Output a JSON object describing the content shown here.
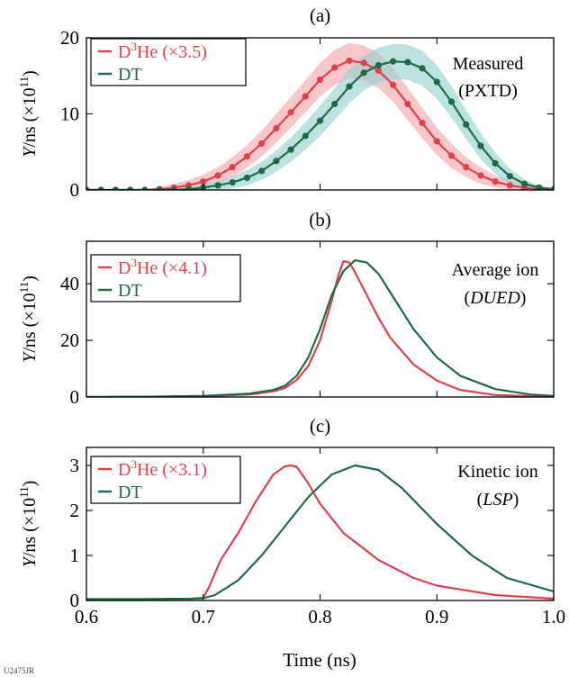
{
  "figure_id": "U2475JR",
  "xlabel": "Time (ns)",
  "x_ticks": [
    "0.6",
    "0.7",
    "0.8",
    "0.9",
    "1.0"
  ],
  "colors": {
    "d3he": "#e0404a",
    "d3he_band": "#f2a9ad",
    "dt": "#1e6a42",
    "dt_band": "#9ad3d3"
  },
  "chart_data": [
    {
      "type": "line",
      "panel": "(a)",
      "title": "",
      "xlabel": "Time (ns)",
      "ylabel_main": "Y",
      "ylabel_rest": "/ns (×10",
      "ylabel_exp": "11",
      "ylabel_close": ")",
      "xlim": [
        0.6,
        1.0
      ],
      "ylim": [
        0,
        20
      ],
      "yticks": [
        0,
        10,
        20
      ],
      "grid": false,
      "legend_position": "top-left",
      "annotation_line1": "Measured",
      "annotation_line2": "(PXTD)",
      "annotation_italic": false,
      "series": [
        {
          "key": "d3he",
          "name": "D",
          "name_sup": "3",
          "name_rest": "He (×3.5)",
          "color": "#e0404a",
          "markers": true,
          "band": true,
          "x": [
            0.6,
            0.6125,
            0.625,
            0.6375,
            0.65,
            0.6625,
            0.675,
            0.6875,
            0.7,
            0.7125,
            0.725,
            0.7375,
            0.75,
            0.7625,
            0.775,
            0.7875,
            0.8,
            0.8125,
            0.825,
            0.8375,
            0.85,
            0.8625,
            0.875,
            0.8875,
            0.9,
            0.9125,
            0.925,
            0.9375,
            0.95,
            0.9625,
            0.975,
            0.9875,
            1.0
          ],
          "y": [
            0,
            0,
            0,
            0,
            0,
            0.1,
            0.3,
            0.6,
            1.1,
            1.9,
            3.0,
            4.4,
            6.1,
            8.1,
            10.2,
            12.3,
            14.5,
            16.1,
            17.0,
            16.7,
            15.7,
            13.8,
            11.3,
            8.8,
            6.4,
            4.5,
            3.0,
            1.9,
            1.1,
            0.6,
            0.3,
            0.1,
            0
          ],
          "band_halfwidth": [
            0,
            0,
            0,
            0,
            0,
            0.3,
            0.5,
            0.7,
            0.9,
            1.1,
            1.3,
            1.5,
            1.7,
            1.9,
            2.0,
            2.1,
            2.2,
            2.3,
            2.3,
            2.3,
            2.3,
            2.2,
            2.1,
            2.0,
            1.8,
            1.6,
            1.3,
            1.1,
            0.8,
            0.6,
            0.4,
            0.2,
            0
          ]
        },
        {
          "key": "dt",
          "name": "DT",
          "name_sup": "",
          "name_rest": "",
          "color": "#1e6a42",
          "markers": true,
          "band": true,
          "x": [
            0.6,
            0.6125,
            0.625,
            0.6375,
            0.65,
            0.6625,
            0.675,
            0.6875,
            0.7,
            0.7125,
            0.725,
            0.7375,
            0.75,
            0.7625,
            0.775,
            0.7875,
            0.8,
            0.8125,
            0.825,
            0.8375,
            0.85,
            0.8625,
            0.875,
            0.8875,
            0.9,
            0.9125,
            0.925,
            0.9375,
            0.95,
            0.9625,
            0.975,
            0.9875,
            1.0
          ],
          "y": [
            0,
            0,
            0,
            0,
            0,
            0,
            0,
            0.1,
            0.3,
            0.6,
            1.0,
            1.6,
            2.5,
            3.8,
            5.3,
            7.1,
            9.1,
            11.3,
            13.6,
            15.4,
            16.4,
            16.9,
            16.8,
            16.0,
            14.2,
            11.6,
            8.6,
            5.8,
            3.5,
            1.8,
            0.8,
            0.3,
            0.1
          ],
          "band_halfwidth": [
            0,
            0,
            0,
            0,
            0,
            0,
            0,
            0.2,
            0.4,
            0.6,
            0.8,
            1.0,
            1.2,
            1.4,
            1.6,
            1.8,
            2.0,
            2.1,
            2.2,
            2.3,
            2.3,
            2.3,
            2.3,
            2.3,
            2.2,
            2.1,
            1.9,
            1.7,
            1.4,
            1.0,
            0.6,
            0.3,
            0.1
          ]
        }
      ]
    },
    {
      "type": "line",
      "panel": "(b)",
      "title": "",
      "xlabel": "Time (ns)",
      "ylabel_main": "Y",
      "ylabel_rest": "/ns (×10",
      "ylabel_exp": "11",
      "ylabel_close": ")",
      "xlim": [
        0.6,
        1.0
      ],
      "ylim": [
        0,
        55
      ],
      "yticks": [
        0,
        20,
        40
      ],
      "grid": false,
      "legend_position": "top-left",
      "annotation_line1": "Average ion",
      "annotation_line2": "DUED",
      "annotation_italic": true,
      "series": [
        {
          "key": "d3he",
          "name": "D",
          "name_sup": "3",
          "name_rest": "He (×4.1)",
          "color": "#e0404a",
          "markers": false,
          "band": false,
          "x": [
            0.6,
            0.65,
            0.7,
            0.74,
            0.76,
            0.77,
            0.78,
            0.79,
            0.8,
            0.81,
            0.815,
            0.82,
            0.825,
            0.83,
            0.84,
            0.85,
            0.86,
            0.88,
            0.9,
            0.92,
            0.95,
            1.0
          ],
          "y": [
            0,
            0.1,
            0.3,
            0.9,
            2.0,
            3.2,
            6.0,
            11.0,
            20.0,
            34.0,
            42.0,
            48.0,
            47.5,
            44.0,
            36.0,
            28.0,
            21.0,
            11.5,
            5.8,
            2.5,
            0.7,
            0.1
          ]
        },
        {
          "key": "dt",
          "name": "DT",
          "name_sup": "",
          "name_rest": "",
          "color": "#1e6a42",
          "markers": false,
          "band": false,
          "x": [
            0.6,
            0.65,
            0.7,
            0.74,
            0.76,
            0.77,
            0.78,
            0.79,
            0.8,
            0.81,
            0.82,
            0.83,
            0.84,
            0.85,
            0.86,
            0.88,
            0.9,
            0.92,
            0.95,
            0.98,
            1.0
          ],
          "y": [
            0,
            0.1,
            0.4,
            1.2,
            2.5,
            4.0,
            7.5,
            14.0,
            24.0,
            36.0,
            44.5,
            48.3,
            47.5,
            43.5,
            37.0,
            24.0,
            14.0,
            7.5,
            2.8,
            0.9,
            0.4
          ]
        }
      ]
    },
    {
      "type": "line",
      "panel": "(c)",
      "title": "",
      "xlabel": "Time (ns)",
      "ylabel_main": "Y",
      "ylabel_rest": "/ns (×10",
      "ylabel_exp": "11",
      "ylabel_close": ")",
      "xlim": [
        0.6,
        1.0
      ],
      "ylim": [
        0,
        3.4
      ],
      "yticks": [
        0,
        1,
        2,
        3
      ],
      "grid": false,
      "legend_position": "top-left",
      "annotation_line1": "Kinetic ion",
      "annotation_line2": "LSP",
      "annotation_italic": true,
      "series": [
        {
          "key": "d3he",
          "name": "D",
          "name_sup": "3",
          "name_rest": "He (×3.1)",
          "color": "#e0404a",
          "markers": false,
          "band": false,
          "x": [
            0.6,
            0.65,
            0.69,
            0.7,
            0.705,
            0.715,
            0.73,
            0.745,
            0.76,
            0.77,
            0.775,
            0.78,
            0.79,
            0.8,
            0.82,
            0.85,
            0.88,
            0.9,
            0.95,
            1.0
          ],
          "y": [
            0.03,
            0.03,
            0.04,
            0.06,
            0.3,
            0.9,
            1.5,
            2.2,
            2.8,
            2.98,
            3.0,
            2.97,
            2.6,
            2.15,
            1.5,
            0.9,
            0.5,
            0.33,
            0.12,
            0.04
          ]
        },
        {
          "key": "dt",
          "name": "DT",
          "name_sup": "",
          "name_rest": "",
          "color": "#1e6a42",
          "markers": false,
          "band": false,
          "x": [
            0.6,
            0.65,
            0.69,
            0.7,
            0.71,
            0.73,
            0.75,
            0.77,
            0.79,
            0.81,
            0.83,
            0.85,
            0.87,
            0.9,
            0.93,
            0.96,
            1.0
          ],
          "y": [
            0.03,
            0.03,
            0.04,
            0.05,
            0.12,
            0.45,
            1.0,
            1.65,
            2.3,
            2.8,
            3.0,
            2.9,
            2.5,
            1.7,
            1.0,
            0.5,
            0.2
          ]
        }
      ]
    }
  ]
}
